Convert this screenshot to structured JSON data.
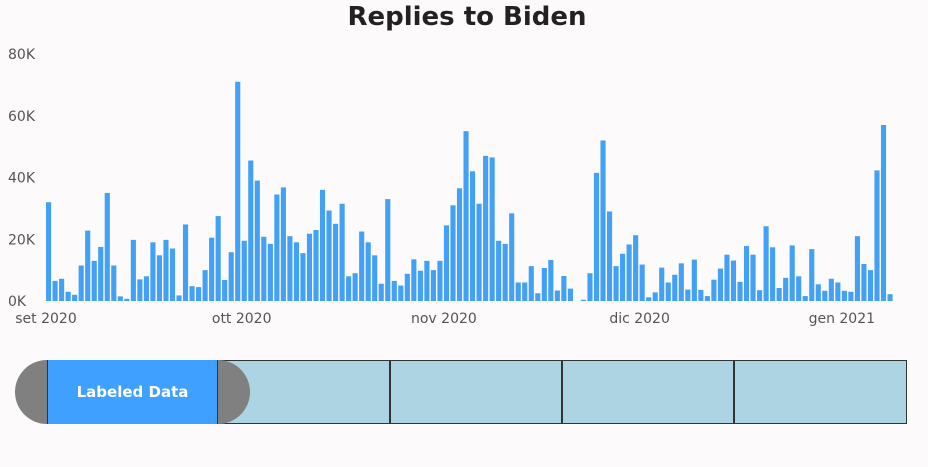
{
  "chart_data": {
    "type": "bar",
    "title": "Replies to Biden",
    "xlabel": "",
    "ylabel": "",
    "ylim": [
      0,
      80000
    ],
    "ytick_labels": [
      "0K",
      "20K",
      "40K",
      "60K",
      "80K"
    ],
    "ytick_values": [
      0,
      20000,
      40000,
      60000,
      80000
    ],
    "xtick_labels": [
      "set 2020",
      "ott 2020",
      "nov 2020",
      "dic 2020",
      "gen 2021"
    ],
    "xtick_dates": [
      "2020-09-01",
      "2020-10-01",
      "2020-11-01",
      "2020-12-01",
      "2021-01-01"
    ],
    "grid": false,
    "color": "#42a0f5",
    "series": [
      {
        "dates": [
          "2020-09-01",
          "2020-09-02",
          "2020-09-03",
          "2020-09-04",
          "2020-09-05",
          "2020-09-06",
          "2020-09-07",
          "2020-09-08",
          "2020-09-09",
          "2020-09-10",
          "2020-09-11",
          "2020-09-12",
          "2020-09-13",
          "2020-09-14",
          "2020-09-15",
          "2020-09-16",
          "2020-09-17",
          "2020-09-18",
          "2020-09-19",
          "2020-09-20",
          "2020-09-21",
          "2020-09-22",
          "2020-09-23",
          "2020-09-24",
          "2020-09-25",
          "2020-09-26",
          "2020-09-27",
          "2020-09-28",
          "2020-09-29",
          "2020-09-30",
          "2020-10-01",
          "2020-10-02",
          "2020-10-03",
          "2020-10-04",
          "2020-10-05",
          "2020-10-06",
          "2020-10-07",
          "2020-10-08",
          "2020-10-09",
          "2020-10-10",
          "2020-10-11",
          "2020-10-12",
          "2020-10-13",
          "2020-10-14",
          "2020-10-15",
          "2020-10-16",
          "2020-10-17",
          "2020-10-18",
          "2020-10-19",
          "2020-10-20",
          "2020-10-21",
          "2020-10-22",
          "2020-10-23",
          "2020-10-24",
          "2020-10-25",
          "2020-10-26",
          "2020-10-27",
          "2020-10-28",
          "2020-10-29",
          "2020-10-30",
          "2020-10-31",
          "2020-11-01",
          "2020-11-02",
          "2020-11-03",
          "2020-11-04",
          "2020-11-05",
          "2020-11-06",
          "2020-11-07",
          "2020-11-08",
          "2020-11-09",
          "2020-11-10",
          "2020-11-11",
          "2020-11-12",
          "2020-11-13",
          "2020-11-14",
          "2020-11-15",
          "2020-11-16",
          "2020-11-17",
          "2020-11-18",
          "2020-11-19",
          "2020-11-20",
          "2020-11-21",
          "2020-11-22",
          "2020-11-23",
          "2020-11-24",
          "2020-11-25",
          "2020-11-26",
          "2020-11-27",
          "2020-11-28",
          "2020-11-29",
          "2020-11-30",
          "2020-12-01",
          "2020-12-02",
          "2020-12-03",
          "2020-12-04",
          "2020-12-05",
          "2020-12-06",
          "2020-12-07",
          "2020-12-08",
          "2020-12-09",
          "2020-12-10",
          "2020-12-11",
          "2020-12-12",
          "2020-12-13",
          "2020-12-14",
          "2020-12-15",
          "2020-12-16",
          "2020-12-17",
          "2020-12-18",
          "2020-12-19",
          "2020-12-20",
          "2020-12-21",
          "2020-12-22",
          "2020-12-23",
          "2020-12-24",
          "2020-12-25",
          "2020-12-26",
          "2020-12-27",
          "2020-12-28",
          "2020-12-29",
          "2020-12-30",
          "2020-12-31",
          "2021-01-01",
          "2021-01-02",
          "2021-01-03",
          "2021-01-04",
          "2021-01-05",
          "2021-01-06",
          "2021-01-07",
          "2021-01-08"
        ],
        "values": [
          32000,
          6500,
          7200,
          3000,
          2000,
          11500,
          22800,
          13000,
          17500,
          35000,
          11500,
          1500,
          700,
          19800,
          7000,
          8000,
          19000,
          14800,
          19800,
          17000,
          1800,
          24800,
          4800,
          4500,
          10000,
          20500,
          27500,
          6800,
          15800,
          71000,
          19500,
          45500,
          39000,
          20800,
          18500,
          34500,
          36800,
          21000,
          19000,
          15500,
          21800,
          23000,
          36000,
          29300,
          25000,
          31500,
          8000,
          9000,
          22500,
          19000,
          14800,
          5600,
          33000,
          6500,
          5000,
          8800,
          13500,
          9800,
          13000,
          10000,
          13000,
          24500,
          31000,
          36500,
          55000,
          42000,
          31500,
          47000,
          46500,
          19500,
          18500,
          28400,
          6000,
          6000,
          11300,
          2500,
          10700,
          13300,
          3400,
          8100,
          4000,
          0,
          400,
          9000,
          41500,
          52000,
          29000,
          11300,
          15300,
          18300,
          21300,
          11800,
          1200,
          2800,
          10800,
          6000,
          8500,
          12200,
          3700,
          13400,
          3600,
          1600,
          6900,
          10500,
          15000,
          13100,
          6200,
          17800,
          15000,
          3500,
          24200,
          17400,
          4200,
          7500,
          18000,
          8000,
          1600,
          16800,
          5400,
          3300,
          7200,
          6000,
          3300,
          3000,
          21000,
          12000,
          10000,
          42300,
          57000,
          2200
        ]
      }
    ]
  },
  "range_slider": {
    "active_label": "Labeled Data",
    "active_color": "#3fa0ff",
    "segment_color": "#add4e2",
    "handle_color": "#808080"
  }
}
